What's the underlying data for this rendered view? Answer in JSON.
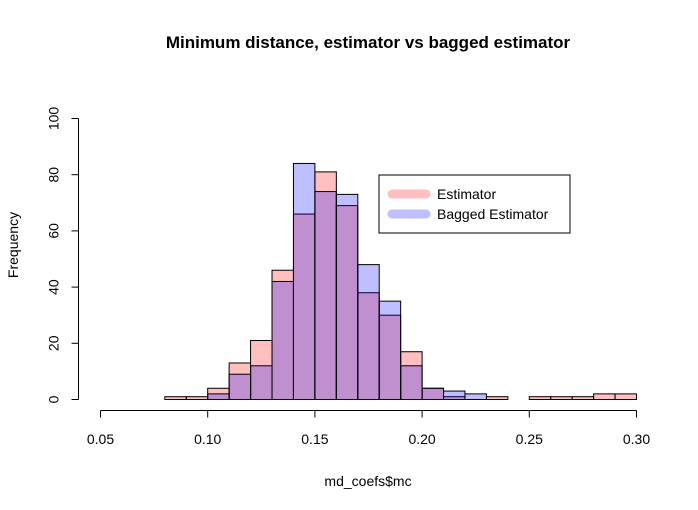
{
  "chart_data": {
    "type": "bar",
    "title": "Minimum distance, estimator vs bagged estimator",
    "xlabel": "md_coefs$mc",
    "ylabel": "Frequency",
    "xlim": [
      0.05,
      0.3
    ],
    "ylim": [
      0,
      100
    ],
    "x_ticks": [
      "0.05",
      "0.10",
      "0.15",
      "0.20",
      "0.25",
      "0.30"
    ],
    "y_ticks": [
      "0",
      "20",
      "40",
      "60",
      "80",
      "100"
    ],
    "bin_width": 0.01,
    "bin_starts": [
      0.08,
      0.09,
      0.1,
      0.11,
      0.12,
      0.13,
      0.14,
      0.15,
      0.16,
      0.17,
      0.18,
      0.19,
      0.2,
      0.21,
      0.22,
      0.23,
      0.24,
      0.25,
      0.26,
      0.27,
      0.28,
      0.29
    ],
    "series": [
      {
        "name": "Estimator",
        "color": "#ff9999",
        "values": [
          1,
          1,
          4,
          13,
          21,
          46,
          66,
          81,
          69,
          38,
          30,
          17,
          4,
          1,
          0,
          1,
          0,
          1,
          1,
          1,
          2,
          2
        ]
      },
      {
        "name": "Bagged Estimator",
        "color": "#9999ff",
        "values": [
          0,
          0,
          2,
          9,
          12,
          42,
          84,
          74,
          73,
          48,
          35,
          12,
          4,
          3,
          2,
          0,
          0,
          0,
          0,
          0,
          0,
          0
        ]
      }
    ],
    "legend_position": "top-right",
    "grid": false
  }
}
